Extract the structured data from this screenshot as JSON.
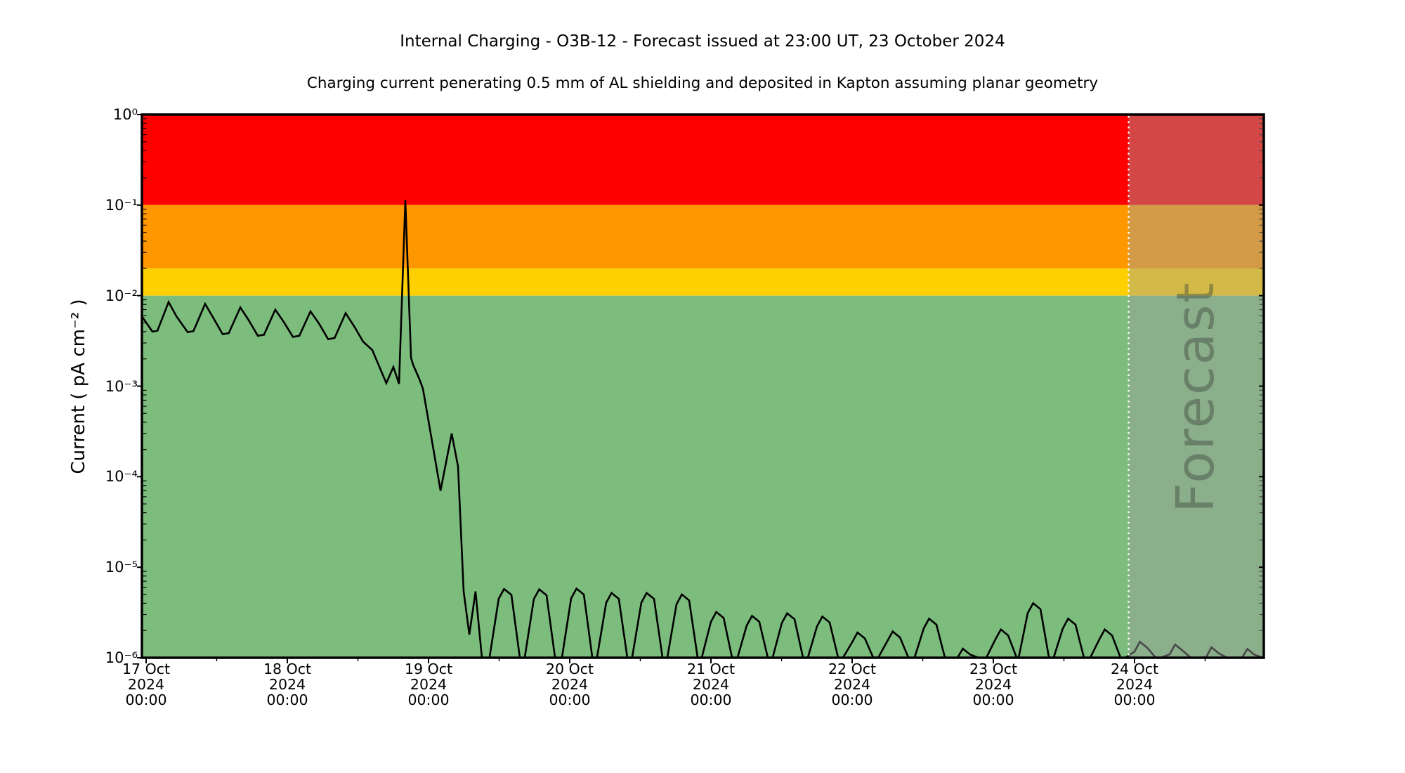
{
  "page": {
    "title": "Internal Charging - O3B-12 - Forecast issued at 23:00 UT, 23 October 2024",
    "subtitle": "Charging current penerating 0.5 mm of AL shielding and deposited in Kapton assuming planar geometry"
  },
  "chart_data": {
    "type": "line",
    "title": "Internal Charging - O3B-12 - Forecast issued at 23:00 UT, 23 October 2024",
    "subtitle": "Charging current penerating 0.5 mm of AL shielding and deposited in Kapton assuming planar geometry",
    "ylabel": "Current ( pA cm⁻² )",
    "ylim": [
      1e-06,
      1.0
    ],
    "y_scale": "log",
    "x_epoch": "17 Oct 2024 00:00",
    "xlim_days": [
      -0.03,
      7.92
    ],
    "grid": false,
    "legend": "none",
    "y_ticks": [
      {
        "value": 1.0,
        "label": "10⁰"
      },
      {
        "value": 0.1,
        "label": "10⁻¹"
      },
      {
        "value": 0.01,
        "label": "10⁻²"
      },
      {
        "value": 0.001,
        "label": "10⁻³"
      },
      {
        "value": 0.0001,
        "label": "10⁻⁴"
      },
      {
        "value": 1e-05,
        "label": "10⁻⁵"
      },
      {
        "value": 1e-06,
        "label": "10⁻⁶"
      }
    ],
    "x_major_ticks": [
      {
        "t": 0,
        "label": [
          "17 Oct",
          "2024",
          "00:00"
        ]
      },
      {
        "t": 1,
        "label": [
          "18 Oct",
          "2024",
          "00:00"
        ]
      },
      {
        "t": 2,
        "label": [
          "19 Oct",
          "2024",
          "00:00"
        ]
      },
      {
        "t": 3,
        "label": [
          "20 Oct",
          "2024",
          "00:00"
        ]
      },
      {
        "t": 4,
        "label": [
          "21 Oct",
          "2024",
          "00:00"
        ]
      },
      {
        "t": 5,
        "label": [
          "22 Oct",
          "2024",
          "00:00"
        ]
      },
      {
        "t": 6,
        "label": [
          "23 Oct",
          "2024",
          "00:00"
        ]
      },
      {
        "t": 7,
        "label": [
          "24 Oct",
          "2024",
          "00:00"
        ]
      }
    ],
    "x_minor_ticks_days": [
      0.5,
      1.5,
      2.5,
      3.5,
      4.5,
      5.5,
      6.5,
      7.5
    ],
    "bands": [
      {
        "name": "red-alert",
        "from": 1.0,
        "to": 0.1,
        "color": "#ff0000"
      },
      {
        "name": "orange-alert",
        "from": 0.1,
        "to": 0.02,
        "color": "#ff9700"
      },
      {
        "name": "yellow-alert",
        "from": 0.02,
        "to": 0.01,
        "color": "#ffd000"
      },
      {
        "name": "green-safe",
        "from": 0.01,
        "to": 1e-06,
        "color": "#7cbc7c"
      }
    ],
    "forecast": {
      "label": "Forecast",
      "start_day": 6.958,
      "issued": "23:00 UT, 23 October 2024",
      "overlay_color": "rgba(158,158,158,0.45)",
      "divider_style": "white-dotted"
    },
    "series": [
      {
        "name": "charging-current",
        "color": "#000000",
        "base_points": [
          [
            -0.03,
            0.0059
          ],
          [
            0.045,
            0.004
          ],
          [
            0.08,
            0.0041
          ],
          [
            0.159,
            0.0085
          ],
          [
            0.215,
            0.0059
          ],
          [
            0.294,
            0.00395
          ],
          [
            0.335,
            0.00405
          ],
          [
            0.418,
            0.0081
          ],
          [
            0.475,
            0.0057
          ],
          [
            0.542,
            0.00375
          ],
          [
            0.585,
            0.00385
          ],
          [
            0.667,
            0.0074
          ],
          [
            0.725,
            0.0054
          ],
          [
            0.791,
            0.0036
          ],
          [
            0.835,
            0.0037
          ],
          [
            0.915,
            0.007
          ],
          [
            0.975,
            0.0051
          ],
          [
            1.04,
            0.0035
          ],
          [
            1.085,
            0.0036
          ],
          [
            1.164,
            0.0067
          ],
          [
            1.225,
            0.0049
          ],
          [
            1.289,
            0.0033
          ],
          [
            1.335,
            0.0034
          ],
          [
            1.413,
            0.0064
          ],
          [
            1.48,
            0.0044
          ],
          [
            1.537,
            0.0031
          ],
          [
            1.602,
            0.0025
          ],
          [
            1.701,
            0.00108
          ],
          [
            1.751,
            0.00163
          ],
          [
            1.791,
            0.00106
          ],
          [
            1.836,
            0.113
          ],
          [
            1.876,
            0.00205
          ],
          [
            1.891,
            0.00172
          ],
          [
            1.935,
            0.0012
          ],
          [
            1.96,
            0.00094
          ],
          [
            2.035,
            0.0002
          ],
          [
            2.085,
            7e-05
          ],
          [
            2.164,
            0.0003
          ],
          [
            2.209,
            0.00013
          ],
          [
            2.249,
            5.4e-06
          ],
          [
            2.289,
            1.8e-06
          ],
          [
            2.333,
            5.4e-06
          ],
          [
            2.378,
            1e-06
          ],
          [
            7.92,
            1.05e-06
          ]
        ],
        "orbital_bumps": [
          [
            2.547,
            5.75e-06
          ],
          [
            2.796,
            5.7e-06
          ],
          [
            3.06,
            5.8e-06
          ],
          [
            3.308,
            5.2e-06
          ],
          [
            3.557,
            5.2e-06
          ],
          [
            3.806,
            5e-06
          ],
          [
            4.05,
            3.2e-06
          ],
          [
            4.303,
            2.9e-06
          ],
          [
            4.552,
            3.1e-06
          ],
          [
            4.801,
            2.85e-06
          ],
          [
            5.05,
            1.9e-06
          ],
          [
            5.299,
            1.95e-06
          ],
          [
            5.557,
            2.7e-06
          ],
          [
            5.796,
            1.26e-06
          ],
          [
            6.065,
            2.05e-06
          ],
          [
            6.294,
            4e-06
          ],
          [
            6.542,
            2.7e-06
          ],
          [
            6.801,
            2.05e-06
          ],
          [
            7.05,
            1.5e-06
          ],
          [
            7.299,
            1.4e-06
          ],
          [
            7.557,
            1.3e-06
          ],
          [
            7.811,
            1.25e-06
          ]
        ]
      }
    ]
  }
}
